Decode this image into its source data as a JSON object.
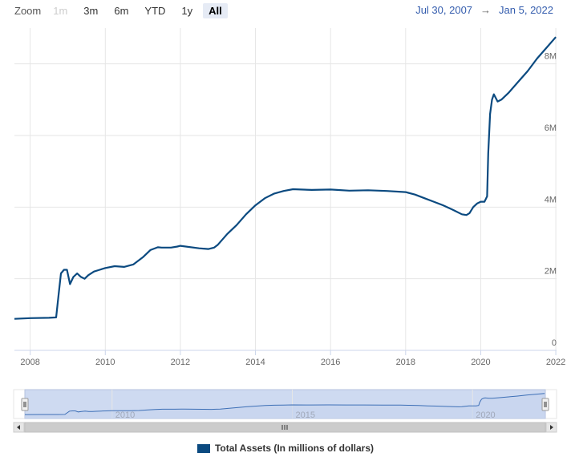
{
  "zoom": {
    "label": "Zoom",
    "buttons": [
      {
        "label": "1m",
        "state": "disabled"
      },
      {
        "label": "3m",
        "state": "normal"
      },
      {
        "label": "6m",
        "state": "normal"
      },
      {
        "label": "YTD",
        "state": "normal"
      },
      {
        "label": "1y",
        "state": "normal"
      },
      {
        "label": "All",
        "state": "active"
      }
    ]
  },
  "range": {
    "from": "Jul 30, 2007",
    "arrow": "→",
    "to": "Jan 5, 2022"
  },
  "legend": {
    "label": "Total Assets (In millions of dollars)"
  },
  "colors": {
    "line": "#0b4a80",
    "navigator_fill": "#c6d3ee",
    "grid": "#e6e6e6"
  },
  "chart_data": {
    "type": "line",
    "title": "",
    "xlabel": "",
    "ylabel": "",
    "xlim": [
      2007.58,
      2022.02
    ],
    "ylim": [
      0,
      9000000
    ],
    "x_ticks": [
      "2008",
      "2010",
      "2012",
      "2014",
      "2016",
      "2018",
      "2020",
      "2022"
    ],
    "y_ticks": [
      "0",
      "2M",
      "4M",
      "6M",
      "8M"
    ],
    "navigator_ticks": [
      "2010",
      "2015",
      "2020"
    ],
    "grid": true,
    "legend_position": "bottom-center",
    "series": [
      {
        "name": "Total Assets (In millions of dollars)",
        "x": [
          2007.58,
          2008.0,
          2008.5,
          2008.69,
          2008.75,
          2008.82,
          2008.9,
          2008.98,
          2009.06,
          2009.15,
          2009.25,
          2009.35,
          2009.45,
          2009.55,
          2009.7,
          2009.85,
          2010.0,
          2010.25,
          2010.5,
          2010.75,
          2011.0,
          2011.2,
          2011.4,
          2011.5,
          2011.75,
          2011.92,
          2012.0,
          2012.5,
          2012.75,
          2012.9,
          2013.0,
          2013.25,
          2013.5,
          2013.75,
          2014.0,
          2014.25,
          2014.5,
          2014.75,
          2015.0,
          2015.5,
          2016.0,
          2016.5,
          2017.0,
          2017.5,
          2018.0,
          2018.25,
          2018.5,
          2018.75,
          2019.0,
          2019.25,
          2019.5,
          2019.62,
          2019.7,
          2019.8,
          2019.9,
          2020.0,
          2020.1,
          2020.17,
          2020.2,
          2020.25,
          2020.3,
          2020.35,
          2020.45,
          2020.55,
          2020.75,
          2021.0,
          2021.25,
          2021.5,
          2021.75,
          2022.0
        ],
        "values": [
          880000,
          900000,
          910000,
          920000,
          1500000,
          2150000,
          2250000,
          2250000,
          1850000,
          2050000,
          2150000,
          2050000,
          2000000,
          2100000,
          2200000,
          2250000,
          2300000,
          2350000,
          2330000,
          2400000,
          2600000,
          2800000,
          2880000,
          2870000,
          2870000,
          2900000,
          2920000,
          2850000,
          2830000,
          2870000,
          2950000,
          3250000,
          3500000,
          3800000,
          4050000,
          4250000,
          4380000,
          4450000,
          4500000,
          4480000,
          4490000,
          4460000,
          4470000,
          4450000,
          4420000,
          4350000,
          4250000,
          4150000,
          4050000,
          3930000,
          3800000,
          3780000,
          3830000,
          4000000,
          4100000,
          4150000,
          4150000,
          4300000,
          5500000,
          6600000,
          7000000,
          7150000,
          6950000,
          7000000,
          7200000,
          7500000,
          7800000,
          8150000,
          8450000,
          8750000
        ]
      }
    ]
  }
}
